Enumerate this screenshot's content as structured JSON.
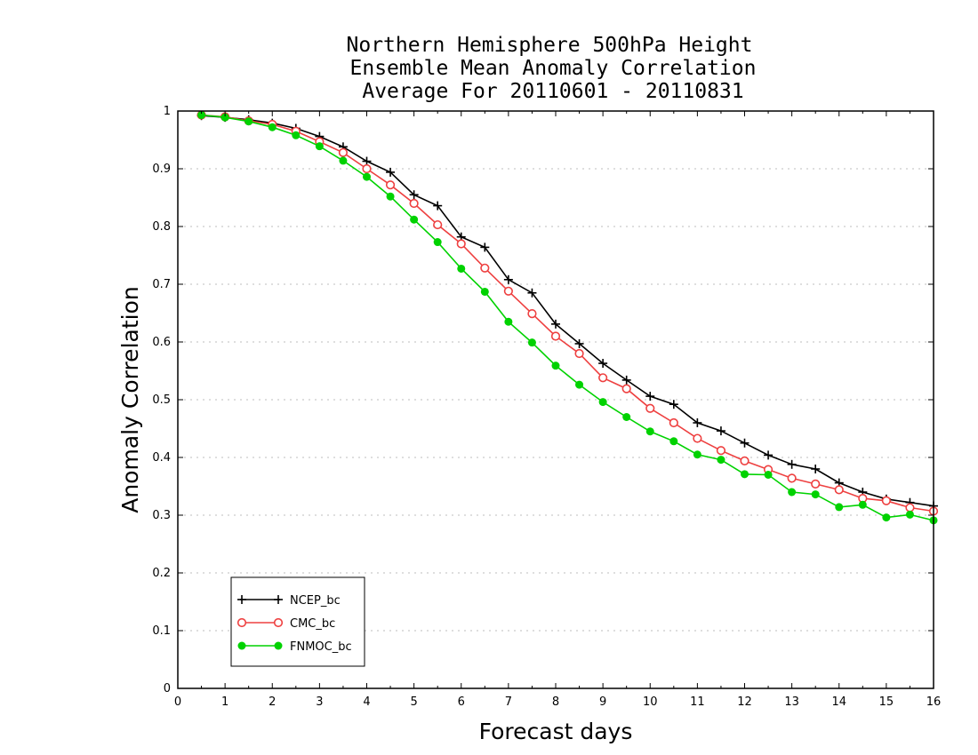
{
  "chart_data": {
    "type": "line",
    "title": [
      "Northern Hemisphere 500hPa Height",
      "Ensemble Mean Anomaly Correlation",
      "Average For 20110601 - 20110831"
    ],
    "xlabel": "Forecast days",
    "ylabel": "Anomaly Correlation",
    "xlim": [
      0,
      16
    ],
    "ylim": [
      0,
      1
    ],
    "xticks": [
      0,
      1,
      2,
      3,
      4,
      5,
      6,
      7,
      8,
      9,
      10,
      11,
      12,
      13,
      14,
      15,
      16
    ],
    "yticks": [
      0,
      0.1,
      0.2,
      0.3,
      0.4,
      0.5,
      0.6,
      0.7,
      0.8,
      0.9,
      1
    ],
    "ytick_labels": [
      "0",
      "0.1",
      "0.2",
      "0.3",
      "0.4",
      "0.5",
      "0.6",
      "0.7",
      "0.8",
      "0.9",
      "1"
    ],
    "grid": true,
    "legend_position": "bottom-left",
    "x": [
      0.5,
      1,
      1.5,
      2,
      2.5,
      3,
      3.5,
      4,
      4.5,
      5,
      5.5,
      6,
      6.5,
      7,
      7.5,
      8,
      8.5,
      9,
      9.5,
      10,
      10.5,
      11,
      11.5,
      12,
      12.5,
      13,
      13.5,
      14,
      14.5,
      15,
      15.5,
      16
    ],
    "series": [
      {
        "name": "NCEP_bc",
        "color": "#000000",
        "marker": "plus",
        "values": [
          0.992,
          0.989,
          0.985,
          0.979,
          0.97,
          0.956,
          0.938,
          0.913,
          0.894,
          0.855,
          0.836,
          0.782,
          0.764,
          0.708,
          0.685,
          0.631,
          0.597,
          0.563,
          0.534,
          0.506,
          0.492,
          0.46,
          0.446,
          0.425,
          0.404,
          0.388,
          0.38,
          0.356,
          0.34,
          0.328,
          0.322,
          0.316
        ]
      },
      {
        "name": "CMC_bc",
        "color": "#ee4040",
        "marker": "open-circle",
        "values": [
          0.993,
          0.99,
          0.983,
          0.977,
          0.965,
          0.947,
          0.928,
          0.9,
          0.872,
          0.84,
          0.803,
          0.77,
          0.728,
          0.688,
          0.649,
          0.61,
          0.58,
          0.538,
          0.519,
          0.485,
          0.46,
          0.433,
          0.412,
          0.394,
          0.379,
          0.364,
          0.354,
          0.344,
          0.329,
          0.325,
          0.313,
          0.307
        ]
      },
      {
        "name": "FNMOC_bc",
        "color": "#00d200",
        "marker": "filled-circle",
        "values": [
          0.993,
          0.989,
          0.982,
          0.972,
          0.958,
          0.939,
          0.914,
          0.886,
          0.852,
          0.812,
          0.773,
          0.727,
          0.687,
          0.635,
          0.599,
          0.559,
          0.526,
          0.496,
          0.47,
          0.445,
          0.428,
          0.405,
          0.396,
          0.371,
          0.37,
          0.34,
          0.336,
          0.314,
          0.318,
          0.296,
          0.301,
          0.291
        ]
      }
    ]
  }
}
